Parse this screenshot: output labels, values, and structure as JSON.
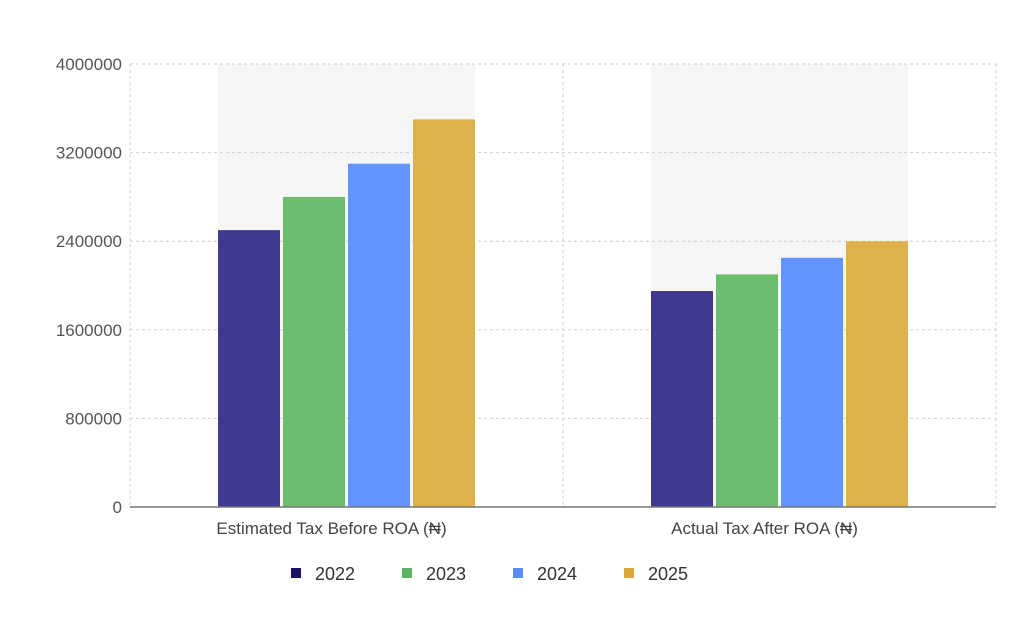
{
  "chart_data": {
    "type": "bar",
    "categories": [
      "Estimated Tax Before ROA (₦)",
      "Actual Tax After ROA (₦)"
    ],
    "series": [
      {
        "name": "2022",
        "color": "#3f3a8f",
        "legend_color": "#1a1466",
        "values": [
          2500000,
          1950000
        ]
      },
      {
        "name": "2023",
        "color": "#6dbd6f",
        "legend_color": "#5bb25f",
        "values": [
          2800000,
          2100000
        ]
      },
      {
        "name": "2024",
        "color": "#6394ff",
        "legend_color": "#5b8cff",
        "values": [
          3100000,
          2250000
        ]
      },
      {
        "name": "2025",
        "color": "#ddb24a",
        "legend_color": "#d8a93a",
        "values": [
          3500000,
          2400000
        ]
      }
    ],
    "ylim": [
      0,
      4000000
    ],
    "yticks": [
      "0",
      "800000",
      "1600000",
      "2400000",
      "3200000",
      "4000000"
    ],
    "grid": true,
    "legend_position": "bottom",
    "background_band_color": "#f6f6f6",
    "title": "",
    "xlabel": "",
    "ylabel": ""
  }
}
